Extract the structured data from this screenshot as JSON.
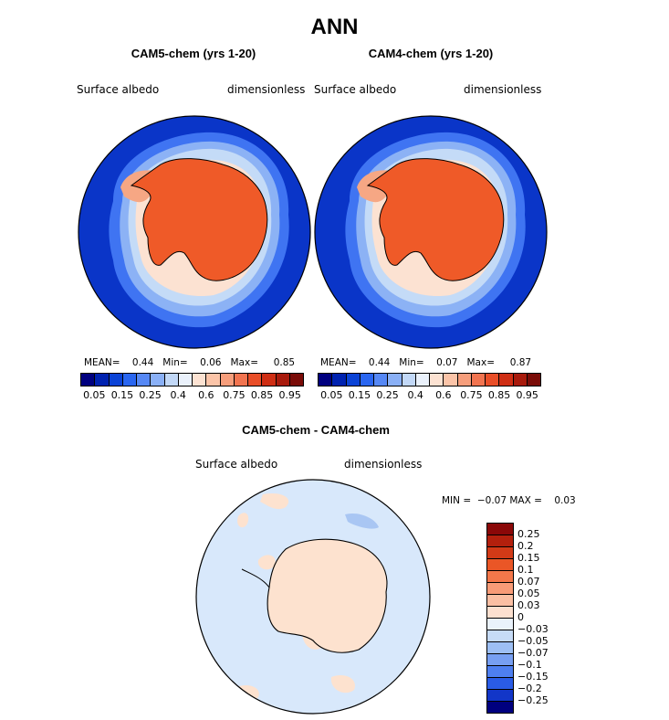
{
  "title": "ANN",
  "panels": [
    {
      "title": "CAM5-chem (yrs 1-20)",
      "variable": "Surface albedo",
      "units": "dimensionless",
      "stats": {
        "mean_label": "MEAN=",
        "mean": "0.44",
        "min_label": "Min=",
        "min": "0.06",
        "max_label": "Max=",
        "max": "0.85"
      }
    },
    {
      "title": "CAM4-chem (yrs 1-20)",
      "variable": "Surface albedo",
      "units": "dimensionless",
      "stats": {
        "mean_label": "MEAN=",
        "mean": "0.44",
        "min_label": "Min=",
        "min": "0.07",
        "max_label": "Max=",
        "max": "0.87"
      }
    }
  ],
  "colorbar": {
    "colors": [
      "#00007f",
      "#0022b0",
      "#0b43d6",
      "#2a66f0",
      "#5688f5",
      "#8ab0f6",
      "#c2d8f7",
      "#eaf1fb",
      "#fce2d2",
      "#fbc4a8",
      "#f69e7c",
      "#f17450",
      "#e94e28",
      "#cf2e14",
      "#a81a0c",
      "#7a0c08"
    ],
    "tick_labels": [
      "0.05",
      "0.15",
      "0.25",
      "0.4",
      "0.6",
      "0.75",
      "0.85",
      "0.95"
    ]
  },
  "diff_panel": {
    "title": "CAM5-chem - CAM4-chem",
    "variable": "Surface albedo",
    "units": "dimensionless",
    "min_label": "MIN =",
    "min": "−0.07",
    "max_label": "MAX =",
    "max": "0.03"
  },
  "diff_colorbar": {
    "colors": [
      "#8a0808",
      "#b3200d",
      "#d23a17",
      "#ea5626",
      "#f4774a",
      "#f89b77",
      "#fbbfa3",
      "#fde0cf",
      "#eaf2fb",
      "#c6dbf7",
      "#9dbff4",
      "#779ff2",
      "#4e7ff0",
      "#2a5ce6",
      "#1236c8",
      "#00007f"
    ],
    "labels": [
      "0.25",
      "0.2",
      "0.15",
      "0.1",
      "0.07",
      "0.05",
      "0.03",
      "0",
      "−0.03",
      "−0.05",
      "−0.07",
      "−0.1",
      "−0.15",
      "−0.2",
      "−0.25"
    ]
  },
  "map_colors": {
    "ocean_deep": "#0a35c8",
    "ocean_mid": "#3f74f2",
    "ocean_light": "#8cb2f5",
    "ice_edge": "#c4dbf7",
    "sea_ice": "#fce2d2",
    "pack": "#f6a784",
    "continent": "#ef5a28",
    "diff_bg": "#d8e8fb",
    "diff_pos": "#fde2cf",
    "diff_neg": "#a9c6f3"
  }
}
